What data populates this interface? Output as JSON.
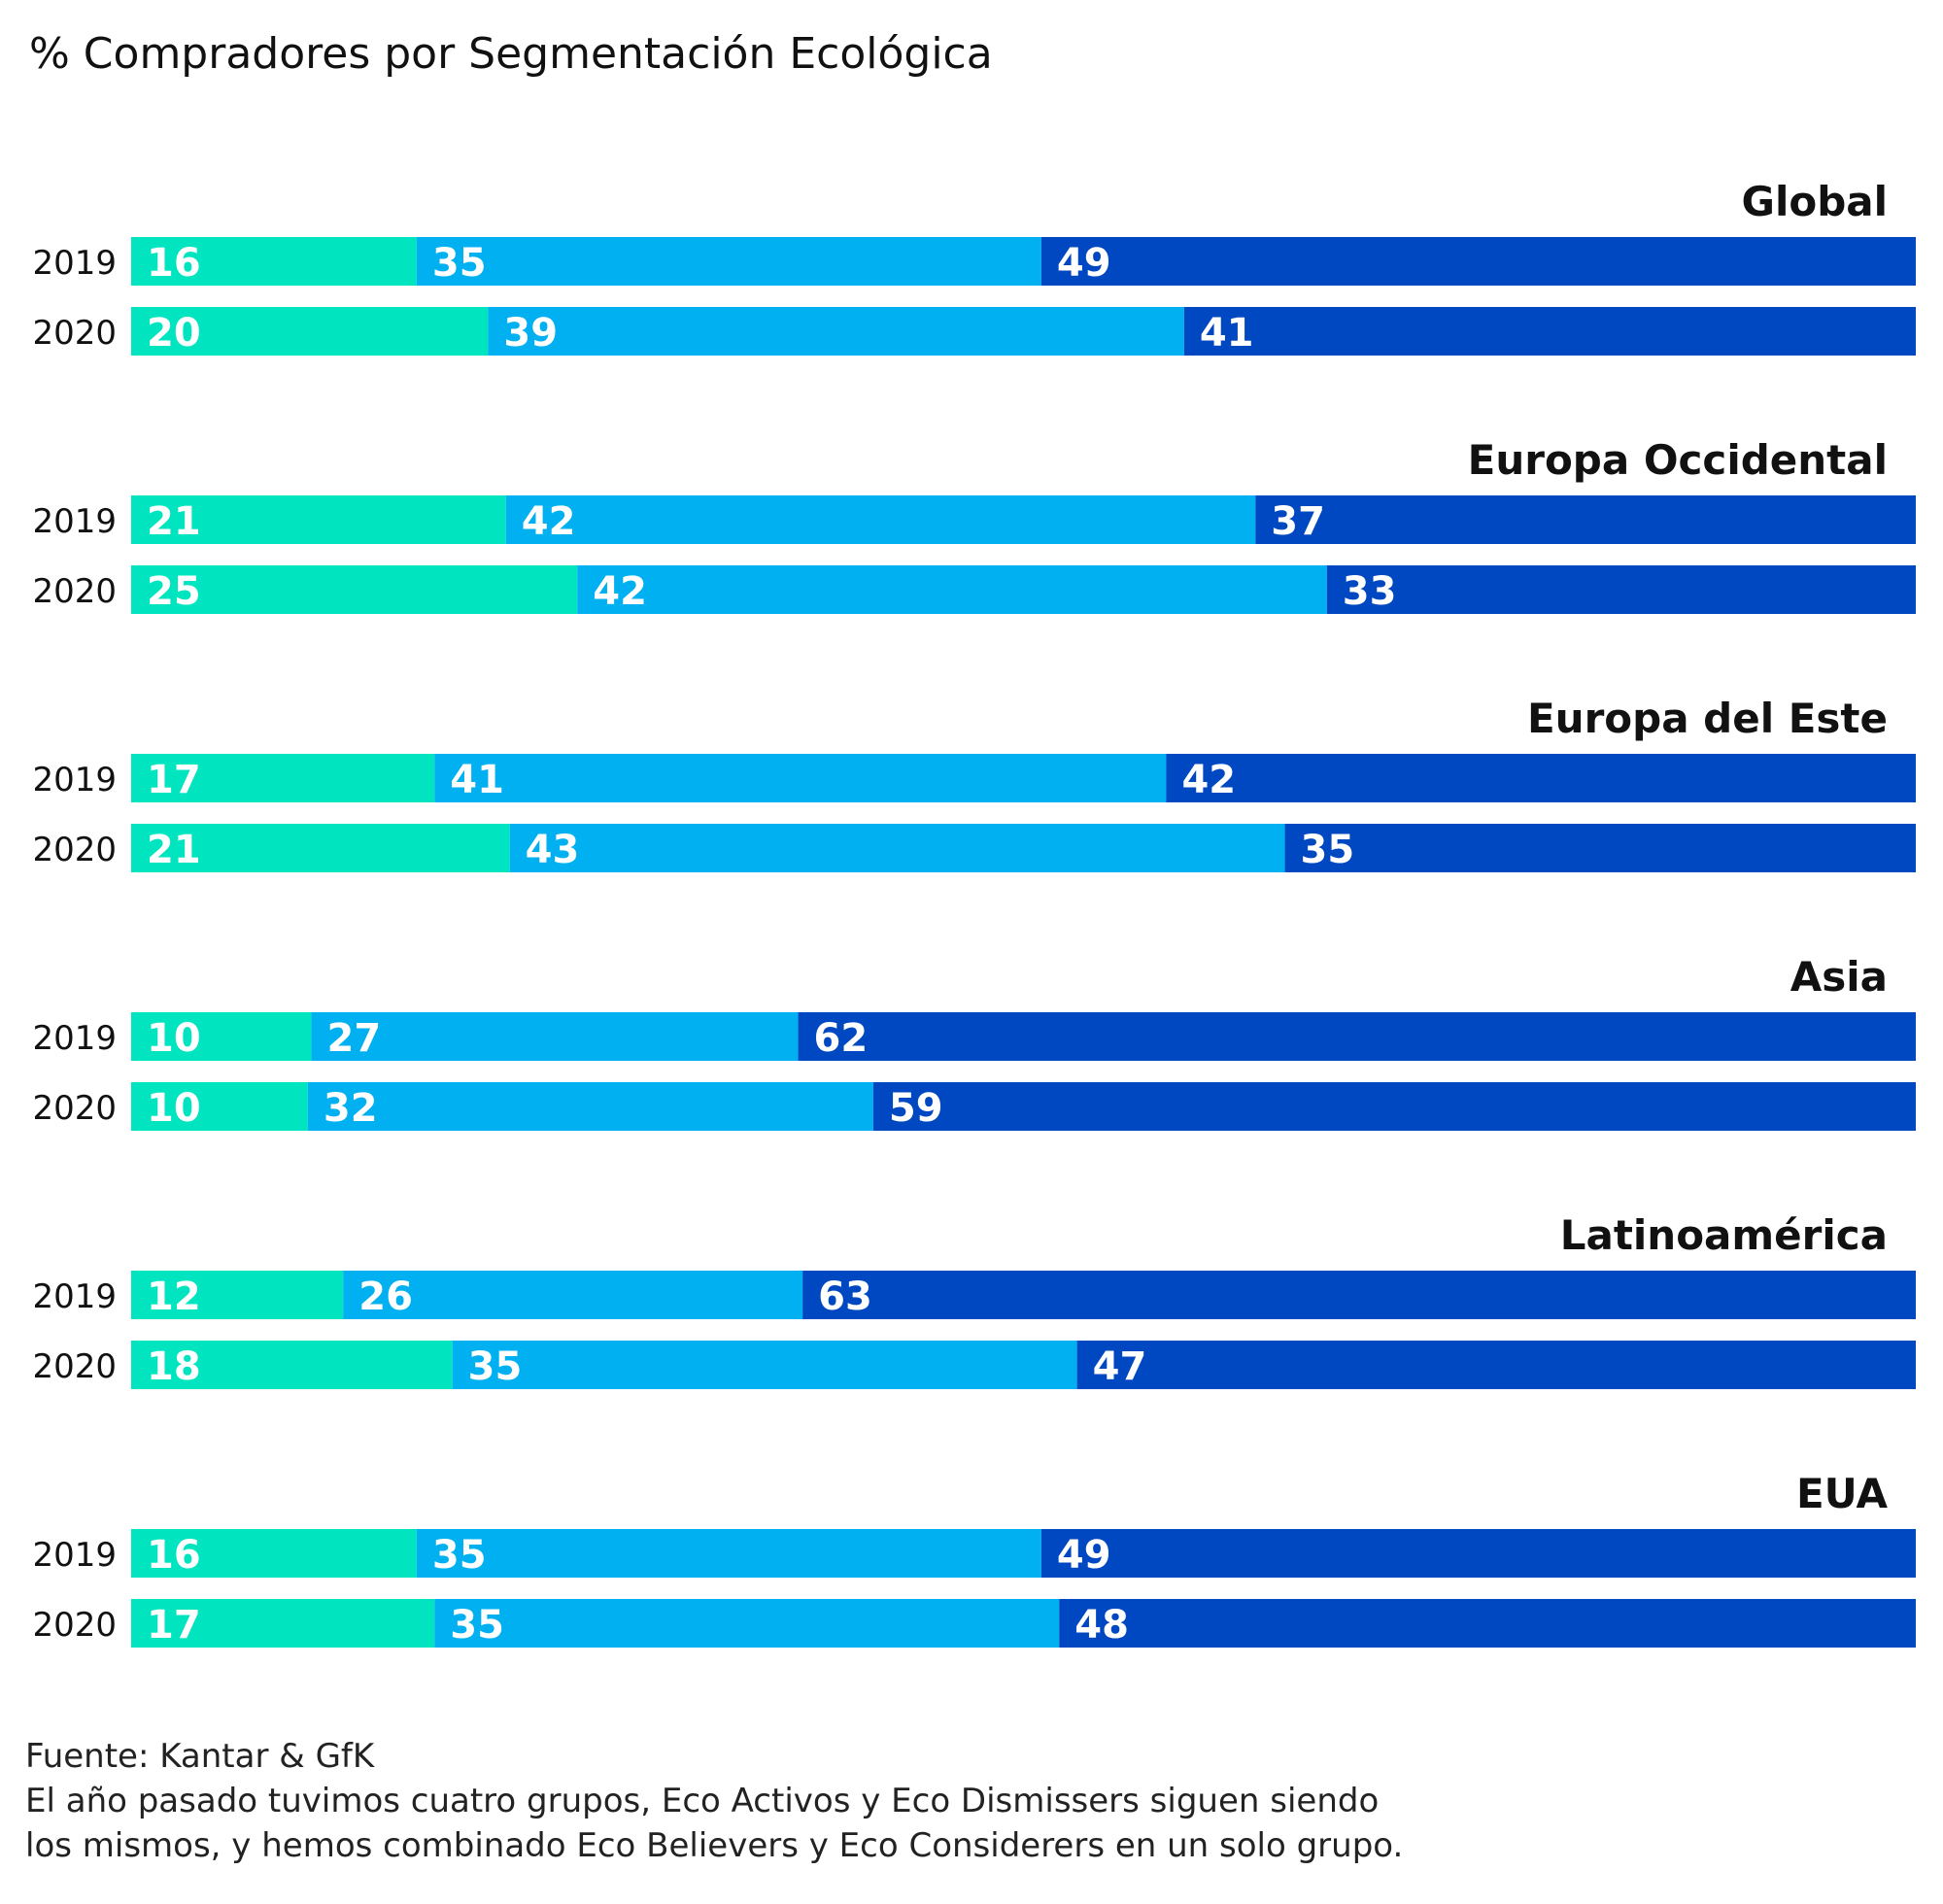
{
  "chart_data": {
    "type": "bar",
    "orientation": "horizontal",
    "stacked": true,
    "title": "% Compradores por Segmentación Ecológica",
    "colors": [
      "#00e5c0",
      "#00b0f0",
      "#0047c2"
    ],
    "groups": [
      {
        "name": "Global",
        "rows": [
          {
            "year": "2019",
            "values": [
              16,
              35,
              49
            ]
          },
          {
            "year": "2020",
            "values": [
              20,
              39,
              41
            ]
          }
        ]
      },
      {
        "name": "Europa Occidental",
        "rows": [
          {
            "year": "2019",
            "values": [
              21,
              42,
              37
            ]
          },
          {
            "year": "2020",
            "values": [
              25,
              42,
              33
            ]
          }
        ]
      },
      {
        "name": "Europa del Este",
        "rows": [
          {
            "year": "2019",
            "values": [
              17,
              41,
              42
            ]
          },
          {
            "year": "2020",
            "values": [
              21,
              43,
              35
            ]
          }
        ]
      },
      {
        "name": "Asia",
        "rows": [
          {
            "year": "2019",
            "values": [
              10,
              27,
              62
            ]
          },
          {
            "year": "2020",
            "values": [
              10,
              32,
              59
            ]
          }
        ]
      },
      {
        "name": "Latinoamérica",
        "rows": [
          {
            "year": "2019",
            "values": [
              12,
              26,
              63
            ]
          },
          {
            "year": "2020",
            "values": [
              18,
              35,
              47
            ]
          }
        ]
      },
      {
        "name": "EUA",
        "rows": [
          {
            "year": "2019",
            "values": [
              16,
              35,
              49
            ]
          },
          {
            "year": "2020",
            "values": [
              17,
              35,
              48
            ]
          }
        ]
      }
    ]
  },
  "footer": {
    "source": "Fuente: Kantar & GfK",
    "note_line1": "El año pasado tuvimos cuatro grupos, Eco Activos y Eco Dismissers siguen siendo",
    "note_line2": "los mismos, y hemos combinado Eco Believers y Eco Considerers en un solo grupo."
  }
}
